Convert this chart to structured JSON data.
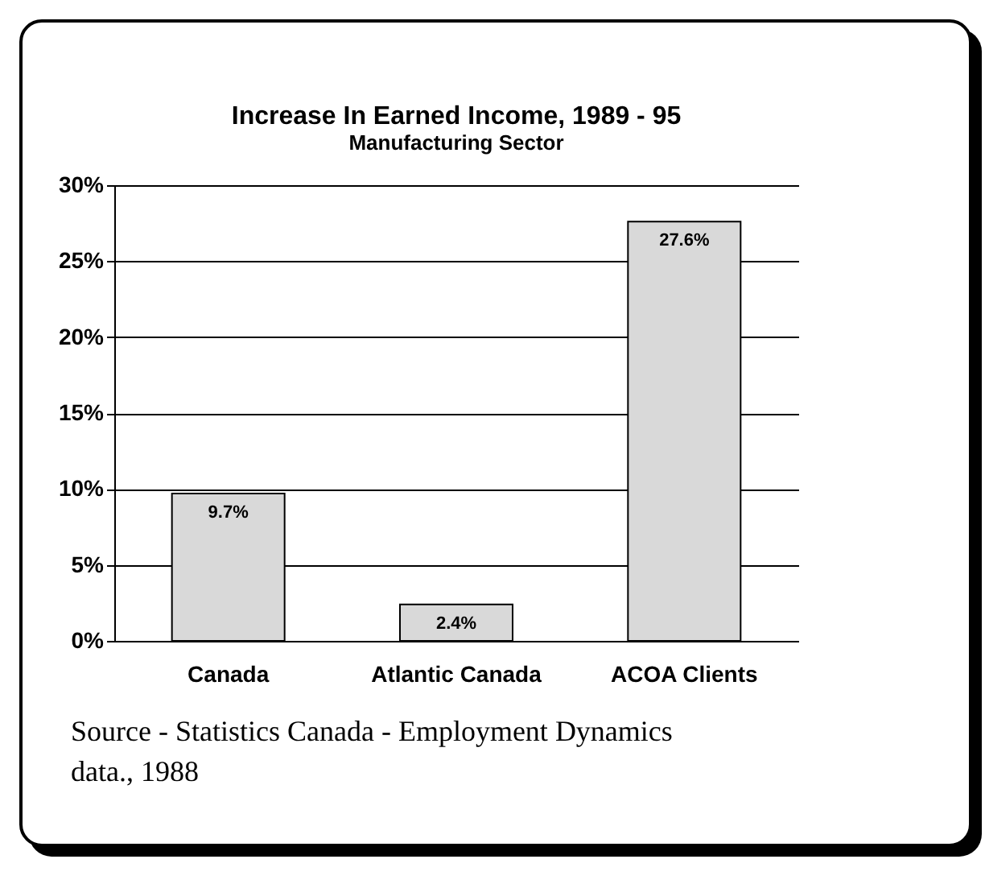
{
  "chart_data": {
    "type": "bar",
    "title": "Increase In Earned Income, 1989 - 95",
    "subtitle": "Manufacturing Sector",
    "categories": [
      "Canada",
      "Atlantic Canada",
      "ACOA Clients"
    ],
    "values": [
      9.7,
      2.4,
      27.6
    ],
    "color": "#d9d9d9",
    "value_labels": [
      "9.7%",
      "2.4%",
      "27.6%"
    ],
    "ylim": [
      0,
      30
    ],
    "yticks": [
      {
        "value": 0,
        "label": "0%"
      },
      {
        "value": 5,
        "label": "5%"
      },
      {
        "value": 10,
        "label": "10%"
      },
      {
        "value": 15,
        "label": "15%"
      },
      {
        "value": 20,
        "label": "20%"
      },
      {
        "value": 25,
        "label": "25%"
      },
      {
        "value": 30,
        "label": "30%"
      }
    ],
    "grid": "y",
    "annotations": [
      "Source - Statistics Canada - Employment Dynamics data., 1988"
    ]
  }
}
